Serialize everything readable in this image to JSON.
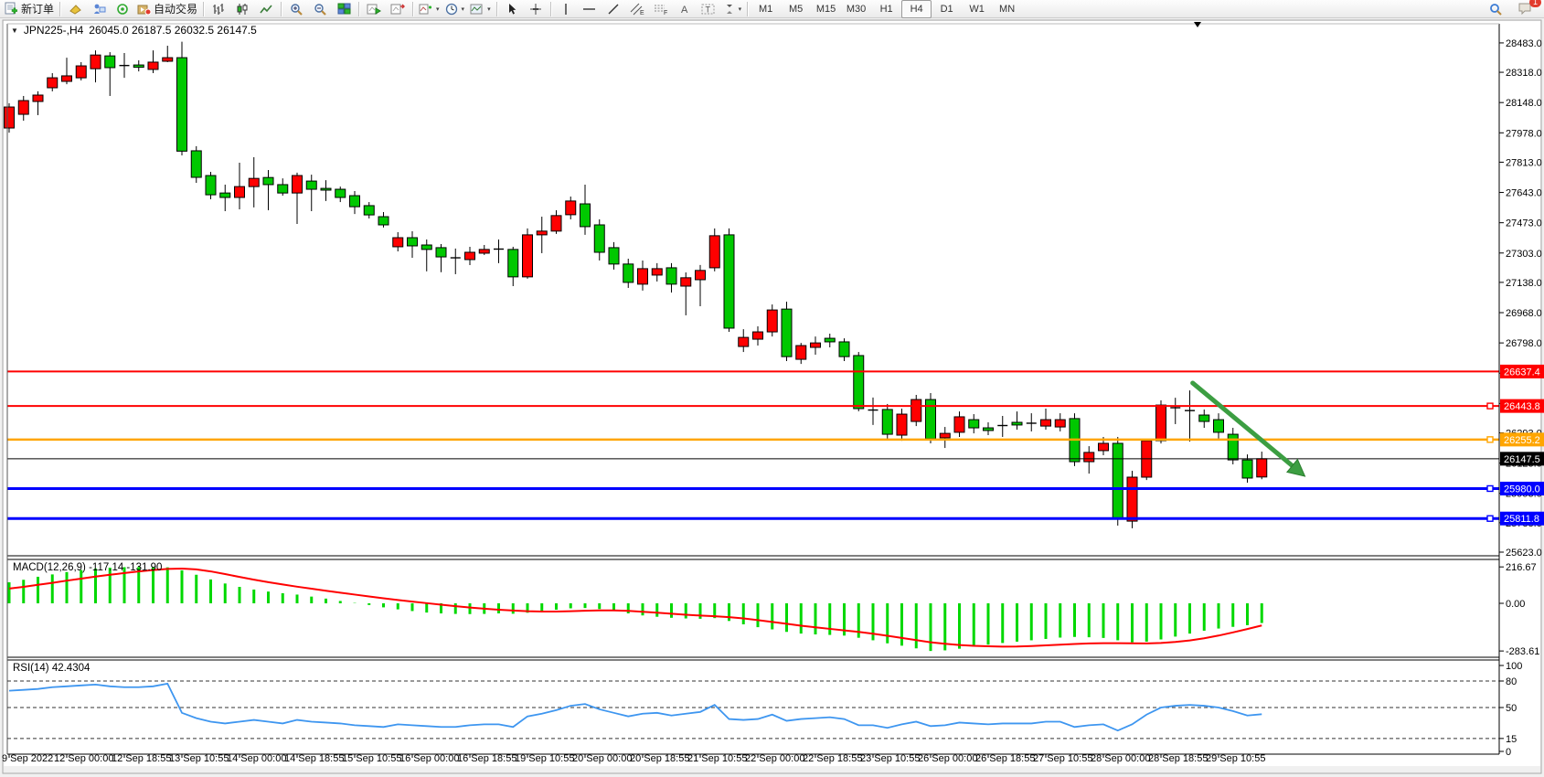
{
  "toolbar": {
    "new_order_label": "新订单",
    "auto_trading_label": "自动交易",
    "notification_count": "1",
    "icons": [
      {
        "name": "new-order-icon",
        "label": "新订单"
      },
      {
        "name": "sep"
      },
      {
        "name": "profile-icon"
      },
      {
        "name": "metaeditor-icon"
      },
      {
        "name": "market-watch-icon"
      },
      {
        "name": "auto-trading-icon",
        "label": "自动交易"
      },
      {
        "name": "sep"
      },
      {
        "name": "bar-chart-icon"
      },
      {
        "name": "candlestick-chart-icon"
      },
      {
        "name": "line-chart-icon"
      },
      {
        "name": "sep"
      },
      {
        "name": "zoom-in-icon"
      },
      {
        "name": "zoom-out-icon"
      },
      {
        "name": "tile-windows-icon"
      },
      {
        "name": "sep"
      },
      {
        "name": "auto-scroll-icon"
      },
      {
        "name": "chart-shift-icon"
      },
      {
        "name": "sep"
      },
      {
        "name": "indicators-icon",
        "caret": true
      },
      {
        "name": "periods-icon",
        "caret": true
      },
      {
        "name": "templates-icon",
        "caret": true
      },
      {
        "name": "sep"
      },
      {
        "name": "cursor-icon"
      },
      {
        "name": "crosshair-icon"
      },
      {
        "name": "sep"
      },
      {
        "name": "vertical-line-icon"
      },
      {
        "name": "horizontal-line-icon"
      },
      {
        "name": "trendline-icon"
      },
      {
        "name": "equidistant-channel-icon"
      },
      {
        "name": "fibonacci-icon"
      },
      {
        "name": "text-icon"
      },
      {
        "name": "text-label-icon"
      },
      {
        "name": "arrows-icon",
        "caret": true
      },
      {
        "name": "sep"
      }
    ],
    "timeframes": [
      "M1",
      "M5",
      "M15",
      "M30",
      "H1",
      "H4",
      "D1",
      "W1",
      "MN"
    ],
    "active_timeframe": "H4"
  },
  "chart": {
    "symbol_period": "JPN225-,H4",
    "ohlc_text": "26045.0 26187.5 26032.5 26147.5",
    "current_price": "26147.5"
  },
  "indicators": {
    "macd_label": "MACD(12,26,9) -117.14 -131.90",
    "rsi_label": "RSI(14) 42.4304"
  },
  "chart_data": [
    {
      "type": "candlestick",
      "title": "JPN225-,H4",
      "timeframe": "H4",
      "bull_color": "#ff0000",
      "bear_color": "#00c800",
      "wick_color": "#000000",
      "grid": false,
      "price_axis": {
        "ticks": [
          28483.0,
          28318.0,
          28148.0,
          27978.0,
          27813.0,
          27643.0,
          27473.0,
          27303.0,
          27138.0,
          26968.0,
          26798.0,
          26628.0,
          26458.0,
          26293.0,
          26123.0,
          25953.0,
          25788.0,
          25623.0
        ],
        "visible_min": 25600,
        "visible_max": 28590
      },
      "x_labels": [
        "9 Sep 2022",
        "12 Sep 00:00",
        "12 Sep 18:55",
        "13 Sep 10:55",
        "14 Sep 00:00",
        "14 Sep 18:55",
        "15 Sep 10:55",
        "16 Sep 00:00",
        "16 Sep 18:55",
        "19 Sep 10:55",
        "20 Sep 00:00",
        "20 Sep 18:55",
        "21 Sep 10:55",
        "22 Sep 00:00",
        "22 Sep 18:55",
        "23 Sep 10:55",
        "26 Sep 00:00",
        "26 Sep 18:55",
        "27 Sep 10:55",
        "28 Sep 00:00",
        "28 Sep 18:55",
        "29 Sep 10:55"
      ],
      "x_label_every": 4,
      "hlines": [
        {
          "price": 26637.4,
          "label": "26637.4",
          "color": "#ff0000",
          "width": 2,
          "handle": false
        },
        {
          "price": 26443.8,
          "label": "26443.8",
          "color": "#ff0000",
          "width": 2,
          "handle": true
        },
        {
          "price": 26255.2,
          "label": "26255.2",
          "color": "#ffa500",
          "width": 2.5,
          "handle": true
        },
        {
          "price": 25980.0,
          "label": "25980.0",
          "color": "#0000ff",
          "width": 3,
          "handle": true
        },
        {
          "price": 25811.8,
          "label": "25811.8",
          "color": "#0000ff",
          "width": 3,
          "handle": true
        }
      ],
      "bid_line": {
        "price": 26147.5,
        "label": "26147.5",
        "color": "#000000"
      },
      "arrow_annotation": {
        "from_index": 82.2,
        "from_price": 26573,
        "to_index": 90.0,
        "to_price": 26049,
        "color": "#3c9e42"
      },
      "candles": [
        [
          28005,
          28144,
          27979,
          28123
        ],
        [
          28082,
          28185,
          28046,
          28159
        ],
        [
          28154,
          28211,
          28077,
          28190
        ],
        [
          28231,
          28313,
          28211,
          28287
        ],
        [
          28267,
          28400,
          28251,
          28298
        ],
        [
          28287,
          28375,
          28272,
          28354
        ],
        [
          28338,
          28441,
          28261,
          28415
        ],
        [
          28410,
          28431,
          28185,
          28344
        ],
        [
          28356,
          28426,
          28287,
          28351
        ],
        [
          28359,
          28385,
          28323,
          28346
        ],
        [
          28334,
          28441,
          28313,
          28375
        ],
        [
          28380,
          28467,
          28375,
          28400
        ],
        [
          28400,
          28490,
          27851,
          27875
        ],
        [
          27877,
          27903,
          27697,
          27728
        ],
        [
          27738,
          27759,
          27605,
          27630
        ],
        [
          27640,
          27687,
          27538,
          27615
        ],
        [
          27615,
          27810,
          27548,
          27676
        ],
        [
          27676,
          27841,
          27559,
          27722
        ],
        [
          27727,
          27769,
          27543,
          27687
        ],
        [
          27687,
          27722,
          27625,
          27640
        ],
        [
          27640,
          27754,
          27466,
          27738
        ],
        [
          27707,
          27743,
          27538,
          27661
        ],
        [
          27666,
          27712,
          27595,
          27656
        ],
        [
          27661,
          27676,
          27589,
          27615
        ],
        [
          27625,
          27651,
          27522,
          27563
        ],
        [
          27569,
          27589,
          27497,
          27517
        ],
        [
          27507,
          27533,
          27446,
          27461
        ],
        [
          27338,
          27420,
          27312,
          27389
        ],
        [
          27389,
          27425,
          27276,
          27343
        ],
        [
          27348,
          27379,
          27200,
          27323
        ],
        [
          27333,
          27353,
          27195,
          27281
        ],
        [
          27276,
          27328,
          27184,
          27271
        ],
        [
          27266,
          27338,
          27235,
          27307
        ],
        [
          27302,
          27348,
          27292,
          27323
        ],
        [
          27325,
          27379,
          27246,
          27320
        ],
        [
          27323,
          27338,
          27117,
          27169
        ],
        [
          27169,
          27441,
          27159,
          27405
        ],
        [
          27405,
          27507,
          27302,
          27426
        ],
        [
          27426,
          27543,
          27410,
          27513
        ],
        [
          27518,
          27620,
          27492,
          27595
        ],
        [
          27579,
          27687,
          27405,
          27451
        ],
        [
          27461,
          27492,
          27261,
          27307
        ],
        [
          27333,
          27364,
          27210,
          27241
        ],
        [
          27241,
          27271,
          27107,
          27138
        ],
        [
          27128,
          27261,
          27092,
          27215
        ],
        [
          27179,
          27246,
          27143,
          27215
        ],
        [
          27220,
          27246,
          27081,
          27128
        ],
        [
          27117,
          27194,
          26953,
          27164
        ],
        [
          27153,
          27236,
          27004,
          27205
        ],
        [
          27220,
          27441,
          27200,
          27400
        ],
        [
          27405,
          27441,
          26860,
          26881
        ],
        [
          26778,
          26875,
          26747,
          26829
        ],
        [
          26819,
          26891,
          26783,
          26860
        ],
        [
          26860,
          27014,
          26834,
          26983
        ],
        [
          26988,
          27030,
          26696,
          26721
        ],
        [
          26706,
          26798,
          26680,
          26783
        ],
        [
          26773,
          26834,
          26732,
          26798
        ],
        [
          26824,
          26850,
          26773,
          26804
        ],
        [
          26804,
          26824,
          26696,
          26721
        ],
        [
          26727,
          26747,
          26414,
          26429
        ],
        [
          26421,
          26491,
          26337,
          26416
        ],
        [
          26424,
          26455,
          26260,
          26285
        ],
        [
          26280,
          26429,
          26249,
          26398
        ],
        [
          26357,
          26506,
          26331,
          26480
        ],
        [
          26480,
          26516,
          26234,
          26260
        ],
        [
          26265,
          26326,
          26208,
          26290
        ],
        [
          26296,
          26413,
          26270,
          26383
        ],
        [
          26367,
          26398,
          26290,
          26321
        ],
        [
          26321,
          26352,
          26280,
          26306
        ],
        [
          26334,
          26388,
          26270,
          26329
        ],
        [
          26352,
          26413,
          26311,
          26337
        ],
        [
          26347,
          26403,
          26301,
          26342
        ],
        [
          26331,
          26429,
          26311,
          26367
        ],
        [
          26326,
          26403,
          26301,
          26367
        ],
        [
          26373,
          26403,
          26106,
          26131
        ],
        [
          26131,
          26218,
          26064,
          26183
        ],
        [
          26193,
          26270,
          26167,
          26234
        ],
        [
          26234,
          26270,
          25772,
          25808
        ],
        [
          25797,
          26080,
          25757,
          26044
        ],
        [
          26044,
          26259,
          26028,
          26249
        ],
        [
          26249,
          26475,
          26233,
          26449
        ],
        [
          26434,
          26490,
          26342,
          26429
        ],
        [
          26418,
          26531,
          26244,
          26413
        ],
        [
          26393,
          26424,
          26321,
          26357
        ],
        [
          26367,
          26403,
          26260,
          26296
        ],
        [
          26285,
          26321,
          26116,
          26141
        ],
        [
          26141,
          26172,
          26013,
          26039
        ],
        [
          26045,
          26187.5,
          26032.5,
          26147.5
        ]
      ]
    },
    {
      "type": "macd",
      "label": "MACD(12,26,9) -117.14 -131.90",
      "histogram_color": "#00d800",
      "signal_color": "#ff0000",
      "scale": {
        "max": 216.67,
        "zero": 0.0,
        "min": -283.61
      },
      "scale_labels": [
        "216.67",
        "0.00",
        "-283.61"
      ],
      "main": [
        125,
        140,
        158,
        172,
        186,
        198,
        207,
        212,
        215,
        216,
        216.67,
        214,
        196,
        170,
        142,
        118,
        98,
        82,
        70,
        60,
        52,
        40,
        28,
        14,
        2,
        -10,
        -24,
        -36,
        -46,
        -55,
        -60,
        -63,
        -64,
        -63,
        -60,
        -62,
        -56,
        -48,
        -38,
        -30,
        -28,
        -34,
        -46,
        -60,
        -72,
        -80,
        -86,
        -90,
        -92,
        -88,
        -105,
        -125,
        -142,
        -155,
        -170,
        -180,
        -185,
        -188,
        -192,
        -205,
        -220,
        -238,
        -252,
        -268,
        -283.61,
        -280,
        -270,
        -258,
        -246,
        -236,
        -228,
        -220,
        -212,
        -204,
        -200,
        -202,
        -206,
        -220,
        -232,
        -228,
        -215,
        -198,
        -180,
        -163,
        -150,
        -140,
        -130,
        -117.14
      ],
      "signal": [
        88,
        98,
        110,
        122,
        135,
        147,
        159,
        170,
        180,
        190,
        198,
        205,
        207,
        202,
        190,
        174,
        157,
        141,
        126,
        112,
        99,
        87,
        75,
        63,
        52,
        41,
        30,
        20,
        10,
        1,
        -8,
        -17,
        -25,
        -32,
        -38,
        -43,
        -47,
        -49,
        -49,
        -47,
        -44,
        -42,
        -42,
        -45,
        -50,
        -56,
        -62,
        -68,
        -73,
        -77,
        -82,
        -90,
        -100,
        -111,
        -122,
        -133,
        -143,
        -152,
        -161,
        -170,
        -181,
        -193,
        -206,
        -219,
        -232,
        -241,
        -248,
        -253,
        -256,
        -258,
        -257,
        -254,
        -250,
        -246,
        -242,
        -239,
        -237,
        -237,
        -238,
        -239,
        -236,
        -230,
        -221,
        -208,
        -192,
        -173,
        -153,
        -131.9
      ]
    },
    {
      "type": "rsi",
      "label": "RSI(14) 42.4304",
      "line_color": "#3e96f0",
      "levels": [
        80,
        50,
        15
      ],
      "scale_labels": [
        "100",
        "80",
        "50",
        "15",
        "0"
      ],
      "values": [
        69,
        70,
        71,
        73,
        74,
        75,
        76,
        74,
        73,
        73,
        74,
        77,
        44,
        38,
        34,
        32,
        34,
        36,
        34,
        32,
        36,
        34,
        33,
        32,
        30,
        29,
        28,
        31,
        30,
        29,
        28,
        28,
        30,
        31,
        31,
        28,
        40,
        43,
        47,
        52,
        54,
        48,
        44,
        40,
        43,
        44,
        41,
        43,
        45,
        53,
        37,
        36,
        37,
        42,
        35,
        37,
        38,
        39,
        37,
        30,
        30,
        27,
        31,
        34,
        29,
        30,
        33,
        32,
        31,
        32,
        32,
        32,
        34,
        34,
        28,
        30,
        31,
        24,
        31,
        42,
        50,
        52,
        53,
        52,
        50,
        46,
        41,
        42.43
      ]
    }
  ]
}
